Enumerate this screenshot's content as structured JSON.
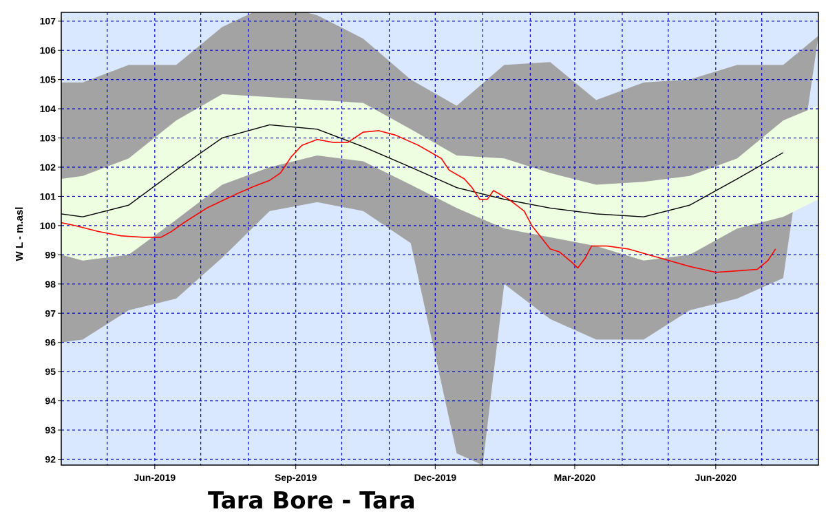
{
  "title": "Tara Bore - Tara",
  "chart_data": {
    "type": "area",
    "title": "Tara Bore - Tara",
    "xlabel": "",
    "ylabel": "W L - m.asl",
    "ylim": [
      91.8,
      107.3
    ],
    "y_ticks": [
      92,
      93,
      94,
      95,
      96,
      97,
      98,
      99,
      100,
      101,
      102,
      103,
      104,
      105,
      106,
      107
    ],
    "x_range": [
      "2019-04-01",
      "2020-08-07"
    ],
    "x_ticks": [
      {
        "date": "2019-06-01",
        "label": "Jun-2019"
      },
      {
        "date": "2019-09-01",
        "label": "Sep-2019"
      },
      {
        "date": "2019-12-01",
        "label": "Dec-2019"
      },
      {
        "date": "2020-03-01",
        "label": "Mar-2020"
      },
      {
        "date": "2020-06-01",
        "label": "Jun-2020"
      }
    ],
    "vertical_grid_dates": [
      "2019-05-01",
      "2019-06-01",
      "2019-07-01",
      "2019-08-01",
      "2019-09-01",
      "2019-10-01",
      "2019-11-01",
      "2019-12-01",
      "2020-01-01",
      "2020-02-01",
      "2020-03-01",
      "2020-04-01",
      "2020-05-01",
      "2020-06-01",
      "2020-07-01"
    ],
    "grid": true,
    "colors": {
      "background": "#d9e8ff",
      "grid": "#0000cc",
      "outer_band": "#a3a3a3",
      "inner_band": "#eefee0",
      "median": "#000000",
      "observed": "#ff0000"
    },
    "series": [
      {
        "role": "outer_upper",
        "points": [
          [
            "2019-04-01",
            104.9
          ],
          [
            "2019-04-15",
            104.9
          ],
          [
            "2019-05-15",
            105.5
          ],
          [
            "2019-06-15",
            105.5
          ],
          [
            "2019-07-15",
            106.8
          ],
          [
            "2019-08-08",
            107.4
          ],
          [
            "2019-09-01",
            107.4
          ],
          [
            "2019-09-15",
            107.2
          ],
          [
            "2019-10-15",
            106.4
          ],
          [
            "2019-11-15",
            105.0
          ],
          [
            "2019-12-15",
            104.1
          ],
          [
            "2020-01-15",
            105.5
          ],
          [
            "2020-02-14",
            105.6
          ],
          [
            "2020-03-15",
            104.3
          ],
          [
            "2020-04-15",
            104.9
          ],
          [
            "2020-05-15",
            105.0
          ],
          [
            "2020-06-15",
            105.5
          ],
          [
            "2020-07-15",
            105.5
          ],
          [
            "2020-08-07",
            106.5
          ]
        ]
      },
      {
        "role": "inner_upper",
        "points": [
          [
            "2019-04-01",
            101.6
          ],
          [
            "2019-04-15",
            101.7
          ],
          [
            "2019-05-15",
            102.3
          ],
          [
            "2019-06-15",
            103.6
          ],
          [
            "2019-07-15",
            104.5
          ],
          [
            "2019-08-15",
            104.4
          ],
          [
            "2019-09-15",
            104.3
          ],
          [
            "2019-10-15",
            104.2
          ],
          [
            "2019-11-15",
            103.3
          ],
          [
            "2019-12-15",
            102.4
          ],
          [
            "2020-01-15",
            102.3
          ],
          [
            "2020-02-14",
            101.8
          ],
          [
            "2020-03-15",
            101.4
          ],
          [
            "2020-04-15",
            101.5
          ],
          [
            "2020-05-15",
            101.7
          ],
          [
            "2020-06-15",
            102.3
          ],
          [
            "2020-07-15",
            103.6
          ],
          [
            "2020-08-07",
            104.1
          ]
        ]
      },
      {
        "role": "median",
        "points": [
          [
            "2019-04-01",
            100.4
          ],
          [
            "2019-04-15",
            100.3
          ],
          [
            "2019-05-15",
            100.7
          ],
          [
            "2019-06-15",
            101.9
          ],
          [
            "2019-07-15",
            103.0
          ],
          [
            "2019-08-15",
            103.45
          ],
          [
            "2019-09-15",
            103.3
          ],
          [
            "2019-10-15",
            102.7
          ],
          [
            "2019-11-15",
            102.0
          ],
          [
            "2019-12-15",
            101.3
          ],
          [
            "2020-01-15",
            100.9
          ],
          [
            "2020-02-14",
            100.6
          ],
          [
            "2020-03-15",
            100.4
          ],
          [
            "2020-04-15",
            100.3
          ],
          [
            "2020-05-15",
            100.7
          ],
          [
            "2020-06-15",
            101.6
          ],
          [
            "2020-07-15",
            102.5
          ]
        ]
      },
      {
        "role": "inner_lower",
        "points": [
          [
            "2019-04-01",
            99.0
          ],
          [
            "2019-04-15",
            98.8
          ],
          [
            "2019-05-15",
            99.0
          ],
          [
            "2019-06-15",
            100.2
          ],
          [
            "2019-07-15",
            101.4
          ],
          [
            "2019-08-15",
            102.0
          ],
          [
            "2019-09-15",
            102.4
          ],
          [
            "2019-10-15",
            102.2
          ],
          [
            "2019-11-15",
            101.4
          ],
          [
            "2019-12-15",
            100.6
          ],
          [
            "2020-01-15",
            99.9
          ],
          [
            "2020-02-14",
            99.6
          ],
          [
            "2020-03-15",
            99.3
          ],
          [
            "2020-04-15",
            98.8
          ],
          [
            "2020-05-15",
            99.0
          ],
          [
            "2020-06-15",
            99.9
          ],
          [
            "2020-07-15",
            100.3
          ],
          [
            "2020-08-07",
            100.9
          ]
        ]
      },
      {
        "role": "outer_lower",
        "points": [
          [
            "2019-04-01",
            96.0
          ],
          [
            "2019-04-15",
            96.1
          ],
          [
            "2019-05-15",
            97.1
          ],
          [
            "2019-06-15",
            97.5
          ],
          [
            "2019-07-15",
            98.9
          ],
          [
            "2019-08-15",
            100.5
          ],
          [
            "2019-09-15",
            100.8
          ],
          [
            "2019-10-15",
            100.5
          ],
          [
            "2019-11-15",
            99.4
          ],
          [
            "2019-12-15",
            92.2
          ],
          [
            "2020-01-01",
            91.8
          ],
          [
            "2020-01-15",
            98.0
          ],
          [
            "2020-02-14",
            96.8
          ],
          [
            "2020-03-15",
            96.1
          ],
          [
            "2020-04-15",
            96.1
          ],
          [
            "2020-05-15",
            97.1
          ],
          [
            "2020-06-15",
            97.5
          ],
          [
            "2020-07-15",
            98.2
          ]
        ]
      },
      {
        "role": "observed",
        "points": [
          [
            "2019-04-01",
            100.1
          ],
          [
            "2019-04-10",
            100.0
          ],
          [
            "2019-04-25",
            99.8
          ],
          [
            "2019-05-10",
            99.65
          ],
          [
            "2019-05-25",
            99.6
          ],
          [
            "2019-06-05",
            99.6
          ],
          [
            "2019-06-12",
            99.8
          ],
          [
            "2019-06-20",
            100.1
          ],
          [
            "2019-07-05",
            100.6
          ],
          [
            "2019-07-25",
            101.1
          ],
          [
            "2019-08-05",
            101.35
          ],
          [
            "2019-08-15",
            101.55
          ],
          [
            "2019-08-22",
            101.8
          ],
          [
            "2019-08-29",
            102.35
          ],
          [
            "2019-09-05",
            102.75
          ],
          [
            "2019-09-15",
            102.95
          ],
          [
            "2019-09-25",
            102.85
          ],
          [
            "2019-10-05",
            102.85
          ],
          [
            "2019-10-15",
            103.2
          ],
          [
            "2019-10-25",
            103.25
          ],
          [
            "2019-11-05",
            103.1
          ],
          [
            "2019-11-20",
            102.75
          ],
          [
            "2019-12-05",
            102.3
          ],
          [
            "2019-12-10",
            101.9
          ],
          [
            "2019-12-20",
            101.6
          ],
          [
            "2019-12-25",
            101.3
          ],
          [
            "2019-12-30",
            100.9
          ],
          [
            "2020-01-04",
            100.9
          ],
          [
            "2020-01-08",
            101.2
          ],
          [
            "2020-01-18",
            100.9
          ],
          [
            "2020-01-28",
            100.5
          ],
          [
            "2020-02-02",
            100.0
          ],
          [
            "2020-02-08",
            99.6
          ],
          [
            "2020-02-14",
            99.2
          ],
          [
            "2020-02-20",
            99.1
          ],
          [
            "2020-02-28",
            98.75
          ],
          [
            "2020-03-03",
            98.55
          ],
          [
            "2020-03-08",
            98.9
          ],
          [
            "2020-03-12",
            99.3
          ],
          [
            "2020-03-22",
            99.3
          ],
          [
            "2020-04-05",
            99.2
          ],
          [
            "2020-04-25",
            98.9
          ],
          [
            "2020-05-15",
            98.6
          ],
          [
            "2020-06-01",
            98.4
          ],
          [
            "2020-06-15",
            98.45
          ],
          [
            "2020-06-28",
            98.5
          ],
          [
            "2020-07-05",
            98.8
          ],
          [
            "2020-07-10",
            99.2
          ]
        ]
      }
    ]
  }
}
